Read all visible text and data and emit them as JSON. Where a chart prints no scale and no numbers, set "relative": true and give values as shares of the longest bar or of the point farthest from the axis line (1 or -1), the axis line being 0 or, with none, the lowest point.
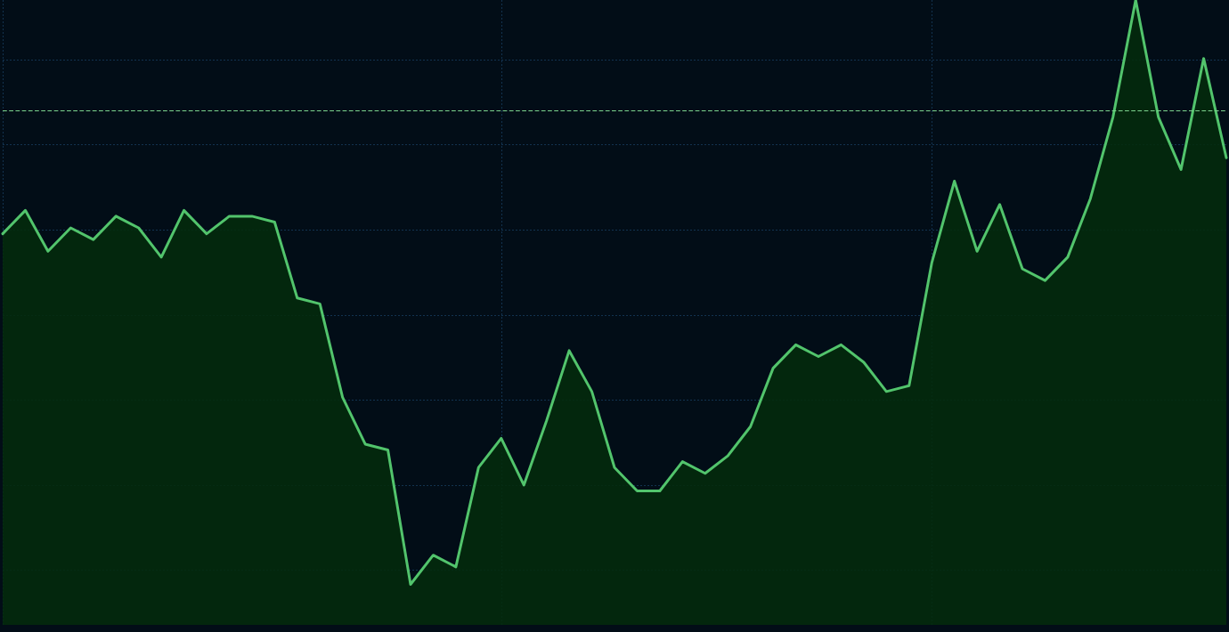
{
  "chart_data": {
    "type": "area",
    "relative": true,
    "categories": [
      null,
      null,
      null,
      null,
      null,
      null,
      null,
      null,
      null,
      null,
      null,
      null,
      null,
      null,
      null,
      null,
      null,
      null,
      null,
      null,
      null,
      null,
      null,
      null,
      null,
      null,
      null,
      null,
      null,
      null,
      null,
      null,
      null,
      null,
      null,
      null,
      null,
      null,
      null,
      null,
      null,
      null,
      null,
      null,
      null,
      null,
      null,
      null,
      null,
      null,
      null,
      null,
      null,
      null,
      null
    ],
    "values": [
      0.6,
      0.64,
      0.57,
      0.61,
      0.59,
      0.63,
      0.61,
      0.56,
      0.64,
      0.6,
      0.63,
      0.63,
      0.62,
      0.49,
      0.48,
      0.32,
      0.24,
      0.23,
      0,
      0.05,
      0.03,
      0.2,
      0.25,
      0.17,
      0.28,
      0.4,
      0.33,
      0.2,
      0.16,
      0.16,
      0.21,
      0.19,
      0.22,
      0.27,
      0.37,
      0.41,
      0.39,
      0.41,
      0.38,
      0.33,
      0.34,
      0.55,
      0.69,
      0.57,
      0.65,
      0.54,
      0.52,
      0.56,
      0.66,
      0.8,
      1,
      0.8,
      0.71,
      0.9,
      0.73
    ],
    "color": "#52c46c",
    "ref_lines": [
      {
        "axis": "y",
        "value": 0.81,
        "color": "#7dd58e",
        "line_style": "dashed"
      }
    ],
    "grid": true,
    "marker": "none",
    "line_style": "solid"
  }
}
